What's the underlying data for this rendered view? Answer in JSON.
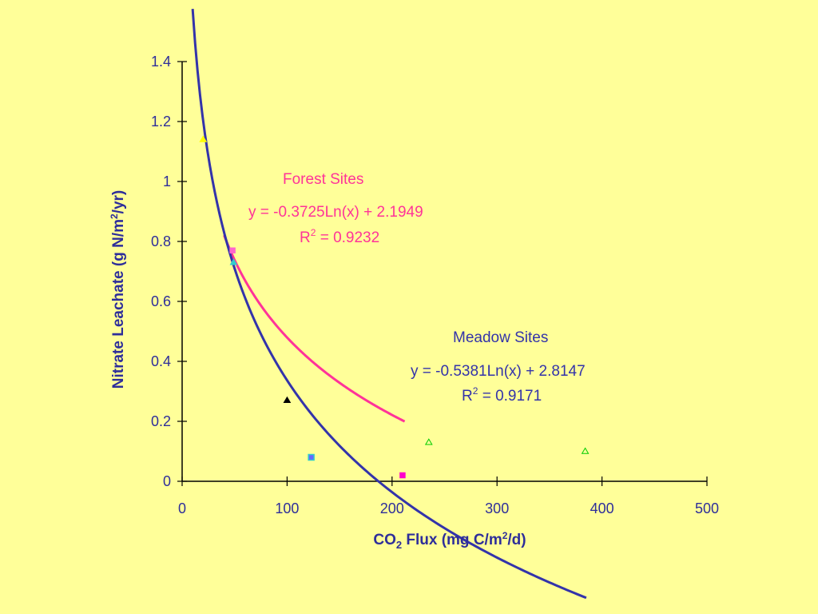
{
  "chart_data": {
    "type": "scatter",
    "xlabel": "CO2 Flux (mg C/m2/d)",
    "xlabel_parts": {
      "pre": "CO",
      "sub": "2",
      "mid": " Flux (mg C/m",
      "sup": "2",
      "post": "/d)"
    },
    "ylabel": "Nitrate Leachate (g N/m2/yr)",
    "ylabel_parts": {
      "pre": "Nitrate Leachate (g N/m",
      "sup": "2",
      "post": "/yr)"
    },
    "xlim": [
      0,
      500
    ],
    "ylim": [
      0,
      1.4
    ],
    "xticks": [
      0,
      100,
      200,
      300,
      400,
      500
    ],
    "yticks": [
      0,
      0.2,
      0.4,
      0.6,
      0.8,
      1,
      1.2,
      1.4
    ],
    "ytick_labels": [
      "0",
      "0.2",
      "0.4",
      "0.6",
      "0.8",
      "1",
      "1.2",
      "1.4"
    ],
    "grid": false,
    "series": [
      {
        "name": "Forest Sites",
        "color": "#FF3399",
        "trendline": {
          "type": "log",
          "a": -0.3725,
          "b": 2.1949,
          "x_range": [
            40,
            212
          ]
        },
        "equation_label": "y = -0.3725Ln(x) + 2.1949",
        "r2_label": {
          "pre": "R",
          "sup": "2",
          "post": " = 0.9232"
        }
      },
      {
        "name": "Meadow Sites",
        "color": "#3333AA",
        "trendline": {
          "type": "log",
          "a": -0.5381,
          "b": 2.8147,
          "x_range": [
            10,
            385
          ]
        },
        "equation_label": "y = -0.5381Ln(x) + 2.8147",
        "r2_label": {
          "pre": "R",
          "sup": "2",
          "post": " = 0.9171"
        }
      }
    ],
    "points": [
      {
        "x": 20,
        "y": 1.14,
        "marker": "triangle-filled",
        "color": "#FFFF00"
      },
      {
        "x": 48,
        "y": 0.77,
        "marker": "square-filled",
        "color": "#FF66CC"
      },
      {
        "x": 49,
        "y": 0.73,
        "marker": "triangle-filled",
        "color": "#33CCCC"
      },
      {
        "x": 100,
        "y": 0.27,
        "marker": "triangle-filled",
        "color": "#000000"
      },
      {
        "x": 123,
        "y": 0.08,
        "marker": "square-filled",
        "color": "#6666FF"
      },
      {
        "x": 123,
        "y": 0.08,
        "marker": "square-open",
        "color": "#33CCCC"
      },
      {
        "x": 210,
        "y": 0.02,
        "marker": "square-filled",
        "color": "#FF00CC"
      },
      {
        "x": 235,
        "y": 0.13,
        "marker": "triangle-open",
        "color": "#00CC00"
      },
      {
        "x": 384,
        "y": 0.1,
        "marker": "triangle-open",
        "color": "#00CC00"
      }
    ]
  }
}
